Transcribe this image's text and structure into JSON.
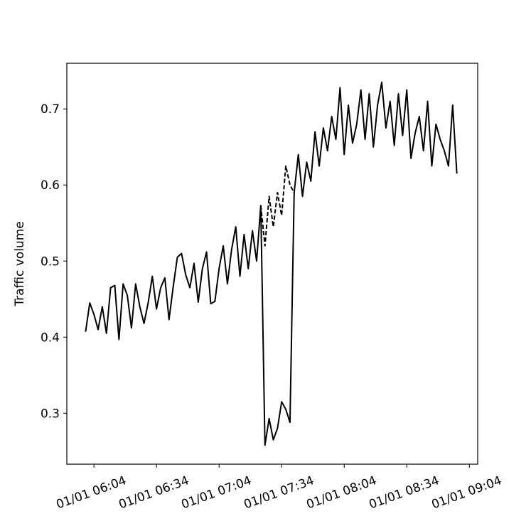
{
  "chart_data": {
    "type": "line",
    "ylabel": "Traffic volume",
    "x": [
      "01/01 06:00",
      "01/01 06:02",
      "01/01 06:04",
      "01/01 06:06",
      "01/01 06:08",
      "01/01 06:10",
      "01/01 06:12",
      "01/01 06:14",
      "01/01 06:16",
      "01/01 06:18",
      "01/01 06:20",
      "01/01 06:22",
      "01/01 06:24",
      "01/01 06:26",
      "01/01 06:28",
      "01/01 06:30",
      "01/01 06:32",
      "01/01 06:34",
      "01/01 06:36",
      "01/01 06:38",
      "01/01 06:40",
      "01/01 06:42",
      "01/01 06:44",
      "01/01 06:46",
      "01/01 06:48",
      "01/01 06:50",
      "01/01 06:52",
      "01/01 06:54",
      "01/01 06:56",
      "01/01 06:58",
      "01/01 07:00",
      "01/01 07:02",
      "01/01 07:04",
      "01/01 07:06",
      "01/01 07:08",
      "01/01 07:10",
      "01/01 07:12",
      "01/01 07:14",
      "01/01 07:16",
      "01/01 07:18",
      "01/01 07:20",
      "01/01 07:22",
      "01/01 07:24",
      "01/01 07:26",
      "01/01 07:28",
      "01/01 07:30",
      "01/01 07:32",
      "01/01 07:34",
      "01/01 07:36",
      "01/01 07:38",
      "01/01 07:40",
      "01/01 07:42",
      "01/01 07:44",
      "01/01 07:46",
      "01/01 07:48",
      "01/01 07:50",
      "01/01 07:52",
      "01/01 07:54",
      "01/01 07:56",
      "01/01 07:58",
      "01/01 08:00",
      "01/01 08:02",
      "01/01 08:04",
      "01/01 08:06",
      "01/01 08:08",
      "01/01 08:10",
      "01/01 08:12",
      "01/01 08:14",
      "01/01 08:16",
      "01/01 08:18",
      "01/01 08:20",
      "01/01 08:22",
      "01/01 08:24",
      "01/01 08:26",
      "01/01 08:28",
      "01/01 08:30",
      "01/01 08:32",
      "01/01 08:34",
      "01/01 08:36",
      "01/01 08:38",
      "01/01 08:40",
      "01/01 08:42",
      "01/01 08:44",
      "01/01 08:46",
      "01/01 08:48",
      "01/01 08:50",
      "01/01 08:52",
      "01/01 08:54",
      "01/01 08:56",
      "01/01 08:58"
    ],
    "series": [
      {
        "color": "#000000",
        "dashed": false,
        "values": [
          0.407,
          0.445,
          0.43,
          0.41,
          0.44,
          0.405,
          0.465,
          0.468,
          0.397,
          0.47,
          0.455,
          0.412,
          0.47,
          0.44,
          0.418,
          0.445,
          0.48,
          0.437,
          0.465,
          0.478,
          0.423,
          0.466,
          0.505,
          0.51,
          0.482,
          0.465,
          0.497,
          0.446,
          0.49,
          0.512,
          0.444,
          0.447,
          0.49,
          0.52,
          0.47,
          0.515,
          0.545,
          0.48,
          0.535,
          0.49,
          0.54,
          0.5,
          0.573,
          0.258,
          0.293,
          0.265,
          0.28,
          0.315,
          0.305,
          0.288,
          0.59,
          0.64,
          0.585,
          0.63,
          0.605,
          0.67,
          0.625,
          0.675,
          0.645,
          0.69,
          0.66,
          0.728,
          0.64,
          0.705,
          0.655,
          0.68,
          0.725,
          0.66,
          0.72,
          0.65,
          0.705,
          0.735,
          0.675,
          0.71,
          0.652,
          0.72,
          0.665,
          0.725,
          0.635,
          0.668,
          0.69,
          0.645,
          0.71,
          0.625,
          0.68,
          0.66,
          0.645,
          0.625,
          0.705,
          0.615
        ]
      },
      {
        "color": "#000000",
        "dashed": true,
        "values": [
          null,
          null,
          null,
          null,
          null,
          null,
          null,
          null,
          null,
          null,
          null,
          null,
          null,
          null,
          null,
          null,
          null,
          null,
          null,
          null,
          null,
          null,
          null,
          null,
          null,
          null,
          null,
          null,
          null,
          null,
          null,
          null,
          null,
          null,
          null,
          null,
          null,
          null,
          null,
          null,
          null,
          null,
          0.573,
          0.52,
          0.585,
          0.545,
          0.59,
          0.56,
          0.625,
          0.6,
          0.59,
          null,
          null,
          null,
          null,
          null,
          null,
          null,
          null,
          null,
          null,
          null,
          null,
          null,
          null,
          null,
          null,
          null,
          null,
          null,
          null,
          null,
          null,
          null,
          null,
          null,
          null,
          null,
          null,
          null,
          null,
          null,
          null,
          null,
          null,
          null,
          null,
          null,
          null,
          null
        ]
      }
    ],
    "xlim": [
      "01/01 05:51",
      "01/01 09:08"
    ],
    "xticks": [
      "01/01 06:04",
      "01/01 06:34",
      "01/01 07:04",
      "01/01 07:34",
      "01/01 08:04",
      "01/01 08:34",
      "01/01 09:04"
    ],
    "ylim": [
      0.233,
      0.76
    ],
    "yticks": [
      0.3,
      0.4,
      0.5,
      0.6,
      0.7
    ],
    "grid": false
  }
}
